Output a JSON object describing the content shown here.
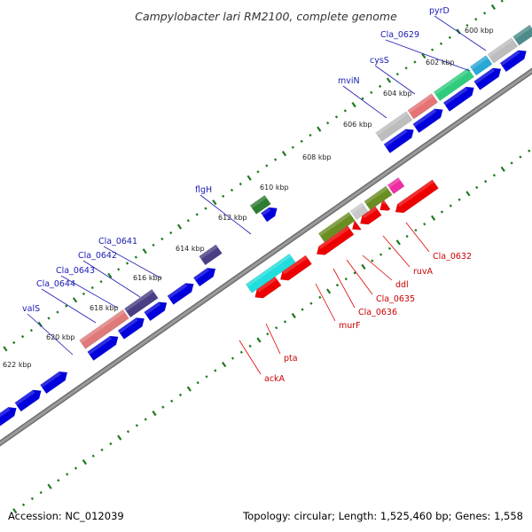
{
  "title": "Campylobacter lari RM2100, complete genome",
  "footer": {
    "accession": "Accession: NC_012039",
    "summary": "Topology: circular; Length: 1,525,460 bp; Genes: 1,558"
  },
  "colors": {
    "backbone": "#9a9a9a",
    "cds_track": "#0000dd",
    "tick": "#1e7a1e",
    "label_upper": "#1a1ab4",
    "label_lower": "#cc0000",
    "leader_upper": "#1a1ab4",
    "leader_lower": "#dd0000"
  },
  "kbp_labels": [
    "600 kbp",
    "602 kbp",
    "604 kbp",
    "606 kbp",
    "608 kbp",
    "610 kbp",
    "612 kbp",
    "614 kbp",
    "616 kbp",
    "618 kbp",
    "620 kbp",
    "622 kbp"
  ],
  "upper_genes": [
    "pyrD",
    "Cla_0629",
    "cysS",
    "mviN",
    "flgH",
    "Cla_0641",
    "Cla_0642",
    "Cla_0643",
    "Cla_0644",
    "valS"
  ],
  "lower_genes": [
    "Cla_0632",
    "ruvA",
    "ddl",
    "Cla_0635",
    "Cla_0636",
    "murF",
    "pta",
    "ackA"
  ]
}
